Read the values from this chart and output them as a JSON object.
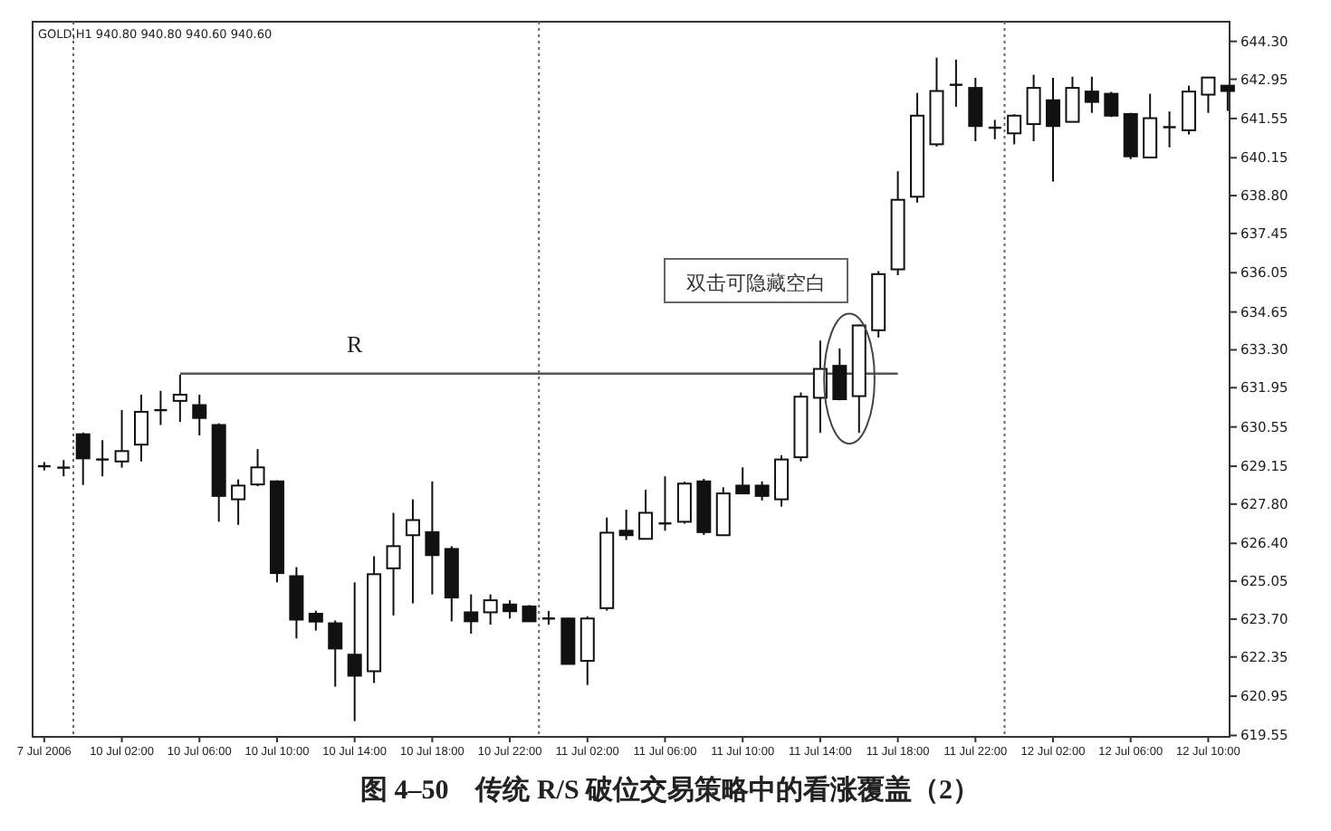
{
  "chart_data": {
    "type": "candlestick",
    "title": "图 4–50　传统 R/S 破位交易策略中的看涨覆盖（2）",
    "categories": [
      "7 Jul 2006",
      null,
      null,
      null,
      "10 Jul 02:00",
      null,
      null,
      null,
      "10 Jul 06:00",
      null,
      null,
      null,
      "10 Jul 10:00",
      null,
      null,
      null,
      "10 Jul 14:00",
      null,
      null,
      null,
      "10 Jul 18:00",
      null,
      null,
      null,
      "10 Jul 22:00",
      null,
      null,
      null,
      "11 Jul 02:00",
      null,
      null,
      null,
      "11 Jul 06:00",
      null,
      null,
      null,
      "11 Jul 10:00",
      null,
      null,
      null,
      "11 Jul 14:00",
      null,
      null,
      null,
      "11 Jul 18:00",
      null,
      null,
      null,
      "11 Jul 22:00",
      null,
      null,
      null,
      "12 Jul 02:00",
      null,
      null,
      null,
      "12 Jul 06:00",
      null,
      null,
      null,
      "12 Jul 10:00",
      null
    ],
    "ohlc": [
      [
        629.15,
        629.3,
        629.0,
        629.15
      ],
      [
        629.1,
        629.37,
        628.79,
        629.1
      ],
      [
        630.29,
        630.35,
        628.48,
        629.43
      ],
      [
        629.39,
        630.08,
        628.79,
        629.39
      ],
      [
        629.32,
        631.15,
        629.1,
        629.69
      ],
      [
        629.92,
        631.7,
        629.32,
        631.09
      ],
      [
        631.15,
        631.84,
        630.62,
        631.15
      ],
      [
        631.48,
        632.41,
        630.73,
        631.7
      ],
      [
        631.33,
        631.7,
        630.25,
        630.87
      ],
      [
        630.62,
        630.68,
        627.17,
        628.09
      ],
      [
        627.97,
        628.68,
        627.06,
        628.46
      ],
      [
        628.5,
        629.76,
        628.44,
        629.11
      ],
      [
        628.61,
        628.65,
        625.01,
        625.34
      ],
      [
        625.23,
        625.55,
        623.01,
        623.68
      ],
      [
        623.89,
        624.0,
        623.29,
        623.61
      ],
      [
        623.55,
        623.65,
        621.29,
        622.65
      ],
      [
        622.43,
        625.01,
        620.06,
        621.68
      ],
      [
        621.84,
        625.94,
        621.42,
        625.3
      ],
      [
        625.51,
        627.49,
        623.83,
        626.3
      ],
      [
        626.69,
        627.97,
        624.26,
        627.23
      ],
      [
        626.8,
        628.61,
        624.58,
        625.98
      ],
      [
        626.2,
        626.3,
        623.62,
        624.47
      ],
      [
        623.94,
        624.58,
        623.18,
        623.62
      ],
      [
        623.94,
        624.58,
        623.5,
        624.37
      ],
      [
        624.22,
        624.37,
        623.72,
        623.98
      ],
      [
        624.15,
        624.2,
        623.6,
        623.62
      ],
      [
        623.72,
        623.99,
        623.5,
        623.72
      ],
      [
        623.72,
        623.75,
        622.1,
        622.1
      ],
      [
        622.21,
        623.8,
        621.35,
        623.72
      ],
      [
        624.09,
        627.32,
        624.0,
        626.78
      ],
      [
        626.85,
        627.6,
        626.52,
        626.69
      ],
      [
        626.56,
        628.31,
        626.56,
        627.49
      ],
      [
        627.11,
        628.79,
        626.85,
        627.11
      ],
      [
        627.17,
        628.6,
        627.1,
        628.53
      ],
      [
        628.61,
        628.7,
        626.7,
        626.8
      ],
      [
        626.69,
        628.4,
        626.69,
        628.18
      ],
      [
        628.46,
        629.11,
        628.15,
        628.18
      ],
      [
        628.46,
        628.61,
        627.93,
        628.09
      ],
      [
        627.97,
        629.54,
        627.71,
        629.39
      ],
      [
        629.47,
        631.78,
        629.32,
        631.63
      ],
      [
        631.59,
        633.63,
        630.34,
        632.62
      ],
      [
        632.73,
        633.35,
        631.5,
        631.54
      ],
      [
        631.65,
        634.2,
        630.34,
        634.17
      ],
      [
        634.0,
        636.11,
        633.74,
        636.0
      ],
      [
        636.17,
        639.67,
        635.96,
        638.65
      ],
      [
        638.76,
        642.46,
        638.55,
        641.65
      ],
      [
        640.63,
        643.72,
        640.55,
        642.53
      ],
      [
        642.75,
        643.65,
        641.97,
        642.75
      ],
      [
        642.64,
        643.0,
        640.74,
        641.28
      ],
      [
        641.22,
        641.5,
        640.81,
        641.22
      ],
      [
        641.02,
        641.7,
        640.63,
        641.65
      ],
      [
        641.35,
        643.11,
        640.74,
        642.64
      ],
      [
        642.2,
        643.0,
        639.3,
        641.28
      ],
      [
        641.43,
        643.04,
        641.43,
        642.64
      ],
      [
        642.51,
        643.04,
        641.75,
        642.14
      ],
      [
        642.43,
        642.5,
        641.6,
        641.65
      ],
      [
        641.71,
        641.75,
        640.1,
        640.2
      ],
      [
        640.16,
        642.43,
        640.16,
        641.56
      ],
      [
        641.24,
        641.8,
        640.52,
        641.24
      ],
      [
        641.13,
        642.72,
        640.98,
        642.51
      ],
      [
        642.4,
        643.01,
        641.75,
        643.01
      ],
      [
        642.72,
        642.72,
        641.82,
        642.53
      ]
    ],
    "series": [
      {
        "type": "line",
        "name": "R",
        "color": "#555555",
        "values": [
          null,
          null,
          null,
          null,
          null,
          null,
          null,
          632.45,
          632.45,
          632.45,
          632.45,
          632.45,
          632.45,
          632.45,
          632.45,
          632.45,
          632.45,
          632.45,
          632.45,
          632.45,
          632.45,
          632.45,
          632.45,
          632.45,
          632.45,
          632.45,
          632.45,
          632.45,
          632.45,
          632.45,
          632.45,
          632.45,
          632.45,
          632.45,
          632.45,
          632.45,
          632.45,
          632.45,
          632.45,
          632.45,
          632.45,
          632.45,
          632.45,
          632.45,
          632.45,
          null,
          null,
          null,
          null,
          null,
          null,
          null,
          null,
          null,
          null,
          null,
          null,
          null,
          null,
          null,
          null,
          null
        ]
      }
    ],
    "ylim": [
      619.5,
      645.0
    ],
    "yticks": [
      {
        "value": 644.3,
        "label": "644.30"
      },
      {
        "value": 642.95,
        "label": "642.95"
      },
      {
        "value": 641.55,
        "label": "641.55"
      },
      {
        "value": 640.15,
        "label": "640.15"
      },
      {
        "value": 638.8,
        "label": "638.80"
      },
      {
        "value": 637.45,
        "label": "637.45"
      },
      {
        "value": 636.05,
        "label": "636.05"
      },
      {
        "value": 634.65,
        "label": "634.65"
      },
      {
        "value": 633.3,
        "label": "633.30"
      },
      {
        "value": 631.95,
        "label": "631.95"
      },
      {
        "value": 630.55,
        "label": "630.55"
      },
      {
        "value": 629.15,
        "label": "629.15"
      },
      {
        "value": 627.8,
        "label": "627.80"
      },
      {
        "value": 626.4,
        "label": "626.40"
      },
      {
        "value": 625.05,
        "label": "625.05"
      },
      {
        "value": 623.7,
        "label": "623.70"
      },
      {
        "value": 622.35,
        "label": "622.35"
      },
      {
        "value": 620.95,
        "label": "620.95"
      },
      {
        "value": 619.55,
        "label": "619.55"
      }
    ],
    "annotations": [
      "GOLD,H1 940.80 940.80 940.60 940.60",
      "双击可隐藏空白"
    ],
    "legend": false,
    "grid": false
  }
}
